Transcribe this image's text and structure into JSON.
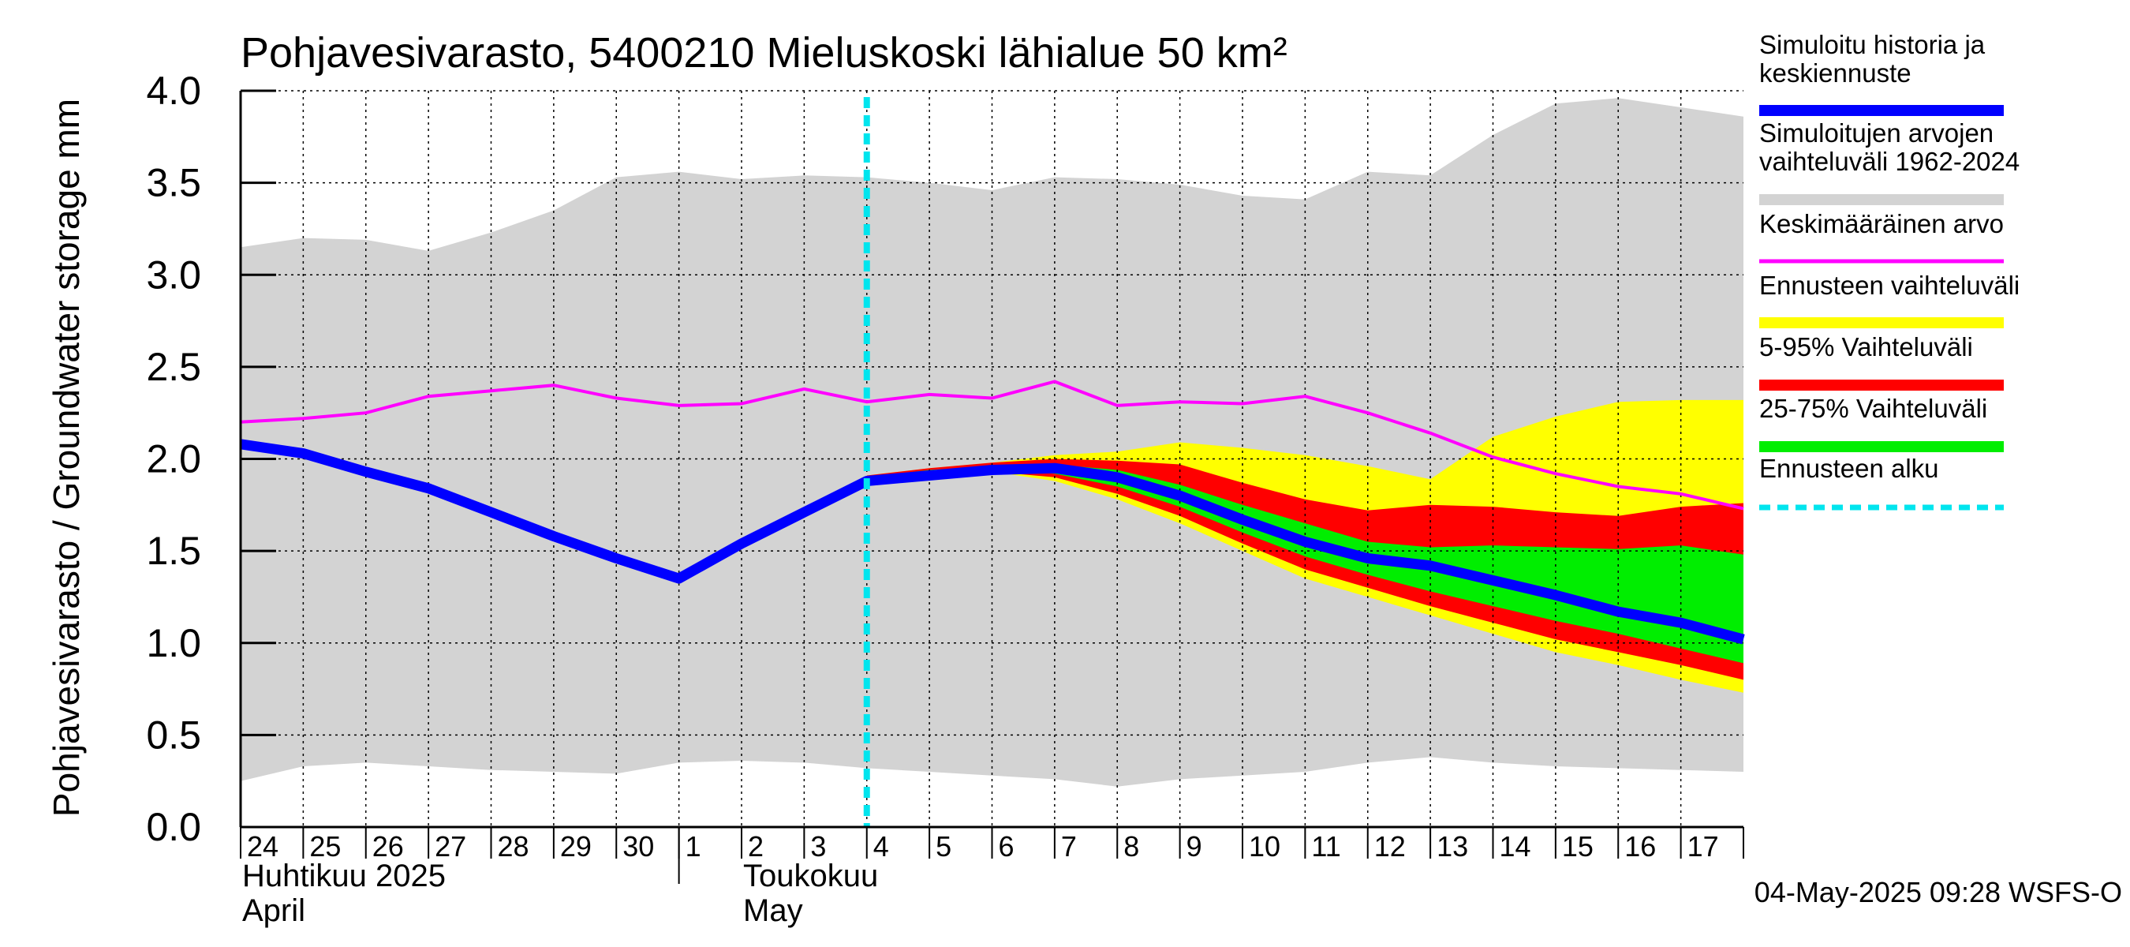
{
  "chart_data": {
    "type": "area",
    "title": "Pohjavesivarasto, 5400210 Mieluskoski lähialue 50 km²",
    "ylabel": "Pohjavesivarasto / Groundwater storage   mm",
    "ylim": [
      0,
      4
    ],
    "y_ticks": [
      "0.0",
      "0.5",
      "1.0",
      "1.5",
      "2.0",
      "2.5",
      "3.0",
      "3.5",
      "4.0"
    ],
    "x_day_labels": [
      "24",
      "25",
      "26",
      "27",
      "28",
      "29",
      "30",
      "1",
      "2",
      "3",
      "4",
      "5",
      "6",
      "7",
      "8",
      "9",
      "10",
      "11",
      "12",
      "13",
      "14",
      "15",
      "16",
      "17"
    ],
    "month_labels": {
      "april_fi": "Huhtikuu  2025",
      "april_en": "April",
      "may_fi": "Toukokuu",
      "may_en": "May"
    },
    "forecast_start_index": 10,
    "footer": "04-May-2025 09:28 WSFS-O",
    "legend": [
      {
        "label": "Simuloitu historia ja keskiennuste",
        "color": "#0000ff"
      },
      {
        "label": "Simuloitujen arvojen vaihteluväli 1962-2024",
        "color": "#d3d3d3"
      },
      {
        "label": "Keskimääräinen arvo",
        "color": "#ff00ff"
      },
      {
        "label": "Ennusteen vaihteluväli",
        "color": "#ffff00"
      },
      {
        "label": "5-95% Vaihteluväli",
        "color": "#ff0000"
      },
      {
        "label": "25-75% Vaihteluväli",
        "color": "#00ee00"
      },
      {
        "label": "Ennusteen alku",
        "color": "#00e5ee"
      }
    ],
    "series": {
      "hist_range": {
        "x": [
          0,
          1,
          2,
          3,
          4,
          5,
          6,
          7,
          8,
          9,
          10,
          11,
          12,
          13,
          14,
          15,
          16,
          17,
          18,
          19,
          20,
          21,
          22,
          23,
          24
        ],
        "upper": [
          3.15,
          3.2,
          3.19,
          3.13,
          3.23,
          3.35,
          3.53,
          3.56,
          3.52,
          3.54,
          3.53,
          3.5,
          3.46,
          3.53,
          3.52,
          3.49,
          3.43,
          3.41,
          3.56,
          3.54,
          3.76,
          3.93,
          3.96,
          3.91,
          3.86
        ],
        "lower": [
          0.25,
          0.33,
          0.35,
          0.33,
          0.31,
          0.3,
          0.29,
          0.35,
          0.36,
          0.35,
          0.32,
          0.3,
          0.28,
          0.26,
          0.22,
          0.26,
          0.28,
          0.3,
          0.35,
          0.38,
          0.35,
          0.33,
          0.32,
          0.31,
          0.3
        ]
      },
      "forecast_range": {
        "x": [
          10,
          11,
          12,
          13,
          14,
          15,
          16,
          17,
          18,
          19,
          20,
          21,
          22,
          23,
          24
        ],
        "upper": [
          1.91,
          1.95,
          1.98,
          2.02,
          2.04,
          2.09,
          2.06,
          2.02,
          1.96,
          1.89,
          2.12,
          2.23,
          2.31,
          2.32,
          2.32
        ],
        "lower": [
          1.86,
          1.9,
          1.93,
          1.88,
          1.78,
          1.65,
          1.5,
          1.35,
          1.25,
          1.15,
          1.05,
          0.95,
          0.88,
          0.8,
          0.73
        ]
      },
      "p5_95": {
        "x": [
          10,
          11,
          12,
          13,
          14,
          15,
          16,
          17,
          18,
          19,
          20,
          21,
          22,
          23,
          24
        ],
        "upper": [
          1.91,
          1.95,
          1.98,
          2.0,
          1.99,
          1.97,
          1.87,
          1.78,
          1.72,
          1.75,
          1.74,
          1.71,
          1.69,
          1.74,
          1.76
        ],
        "lower": [
          1.87,
          1.91,
          1.93,
          1.9,
          1.81,
          1.69,
          1.54,
          1.4,
          1.3,
          1.2,
          1.11,
          1.02,
          0.95,
          0.88,
          0.8
        ]
      },
      "p25_75": {
        "x": [
          10,
          11,
          12,
          13,
          14,
          15,
          16,
          17,
          18,
          19,
          20,
          21,
          22,
          23,
          24
        ],
        "upper": [
          1.9,
          1.94,
          1.96,
          1.97,
          1.94,
          1.86,
          1.75,
          1.65,
          1.55,
          1.52,
          1.53,
          1.52,
          1.51,
          1.53,
          1.48
        ],
        "lower": [
          1.88,
          1.92,
          1.94,
          1.92,
          1.85,
          1.74,
          1.6,
          1.47,
          1.37,
          1.28,
          1.2,
          1.12,
          1.05,
          0.97,
          0.89
        ]
      },
      "mean": {
        "x": [
          0,
          1,
          2,
          3,
          4,
          5,
          6,
          7,
          8,
          9,
          10,
          11,
          12,
          13,
          14,
          15,
          16,
          17,
          18,
          19,
          20,
          21,
          22,
          23,
          24
        ],
        "values": [
          2.2,
          2.22,
          2.25,
          2.34,
          2.37,
          2.4,
          2.33,
          2.29,
          2.3,
          2.38,
          2.31,
          2.35,
          2.33,
          2.42,
          2.29,
          2.31,
          2.3,
          2.34,
          2.25,
          2.14,
          2.01,
          1.92,
          1.85,
          1.81,
          1.73
        ]
      },
      "median": {
        "x": [
          0,
          1,
          2,
          3,
          4,
          5,
          6,
          7,
          8,
          9,
          10,
          11,
          12,
          13,
          14,
          15,
          16,
          17,
          18,
          19,
          20,
          21,
          22,
          23,
          24
        ],
        "values": [
          2.08,
          2.03,
          1.93,
          1.84,
          1.71,
          1.58,
          1.46,
          1.35,
          1.54,
          1.71,
          1.88,
          1.91,
          1.94,
          1.95,
          1.9,
          1.8,
          1.67,
          1.55,
          1.46,
          1.42,
          1.34,
          1.26,
          1.17,
          1.11,
          1.02
        ]
      }
    }
  }
}
